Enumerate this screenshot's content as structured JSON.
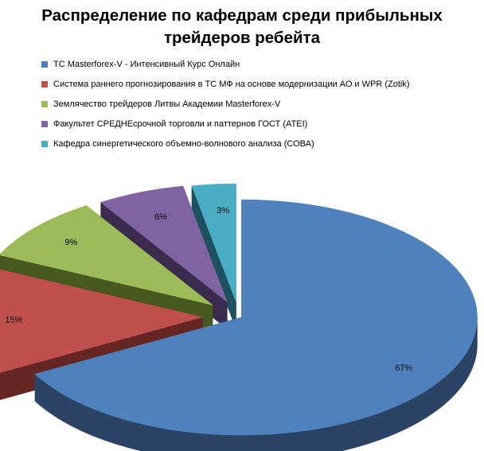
{
  "chart_data": {
    "type": "pie",
    "title_lines": [
      "Распределение по кафедрам среди прибыльных",
      "трейдеров ребейта"
    ],
    "legend_position": "top-left",
    "slices": [
      {
        "name": "ТС Masterforex-V - Интенсивный  Курс Онлайн",
        "value": 67,
        "label": "67%",
        "color": "#4F81BD",
        "side_color": "#2B4466"
      },
      {
        "name": "Система раннего прогнозирования в ТС МФ на основе модернизации АО и WPR  (Zotik)",
        "value": 15,
        "label": "15%",
        "color": "#C0504D",
        "side_color": "#662624"
      },
      {
        "name": "Землячество  трейдеров  Литвы Академии Masterforex-V",
        "value": 9,
        "label": "9%",
        "color": "#9BBB59",
        "side_color": "#47591F"
      },
      {
        "name": "Факультет СРЕДНЕсрочной  торговли и паттернов ГОСТ (ATEI)",
        "value": 6,
        "label": "6%",
        "color": "#8064A2",
        "side_color": "#3A2B4F"
      },
      {
        "name": "Кафедра синергетического  объемно-волнового  анализа (СОВА)",
        "value": 3,
        "label": "3%",
        "color": "#4BACC6",
        "side_color": "#1F5260"
      }
    ]
  }
}
